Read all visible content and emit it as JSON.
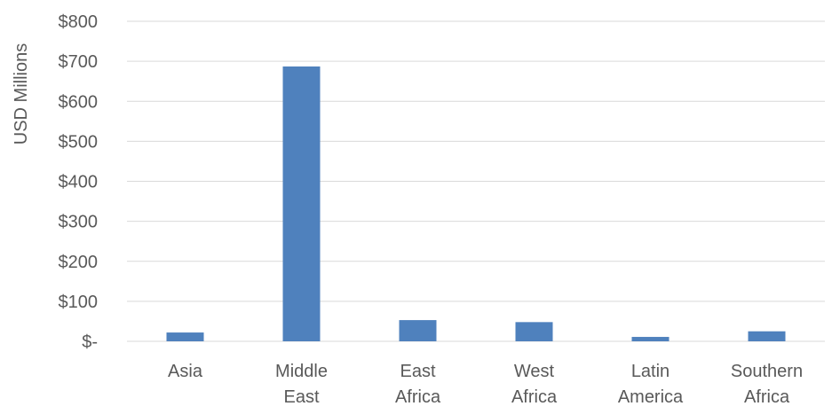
{
  "chart_data": {
    "type": "bar",
    "title": "",
    "xlabel": "",
    "ylabel": "USD Millions",
    "categories": [
      [
        "Asia"
      ],
      [
        "Middle",
        "East"
      ],
      [
        "East",
        "Africa"
      ],
      [
        "West",
        "Africa"
      ],
      [
        "Latin",
        "America"
      ],
      [
        "Southern",
        "Africa"
      ]
    ],
    "values": [
      22,
      687,
      53,
      48,
      11,
      25
    ],
    "ylim": [
      0,
      800
    ],
    "yticks": [
      0,
      100,
      200,
      300,
      400,
      500,
      600,
      700,
      800
    ],
    "ytick_labels": [
      "$-",
      "$100",
      "$200",
      "$300",
      "$400",
      "$500",
      "$600",
      "$700",
      "$800"
    ],
    "grid": true,
    "legend": "none",
    "bar_color": "#4f81bd",
    "grid_color": "#d9d9d9",
    "text_color": "#595959"
  }
}
